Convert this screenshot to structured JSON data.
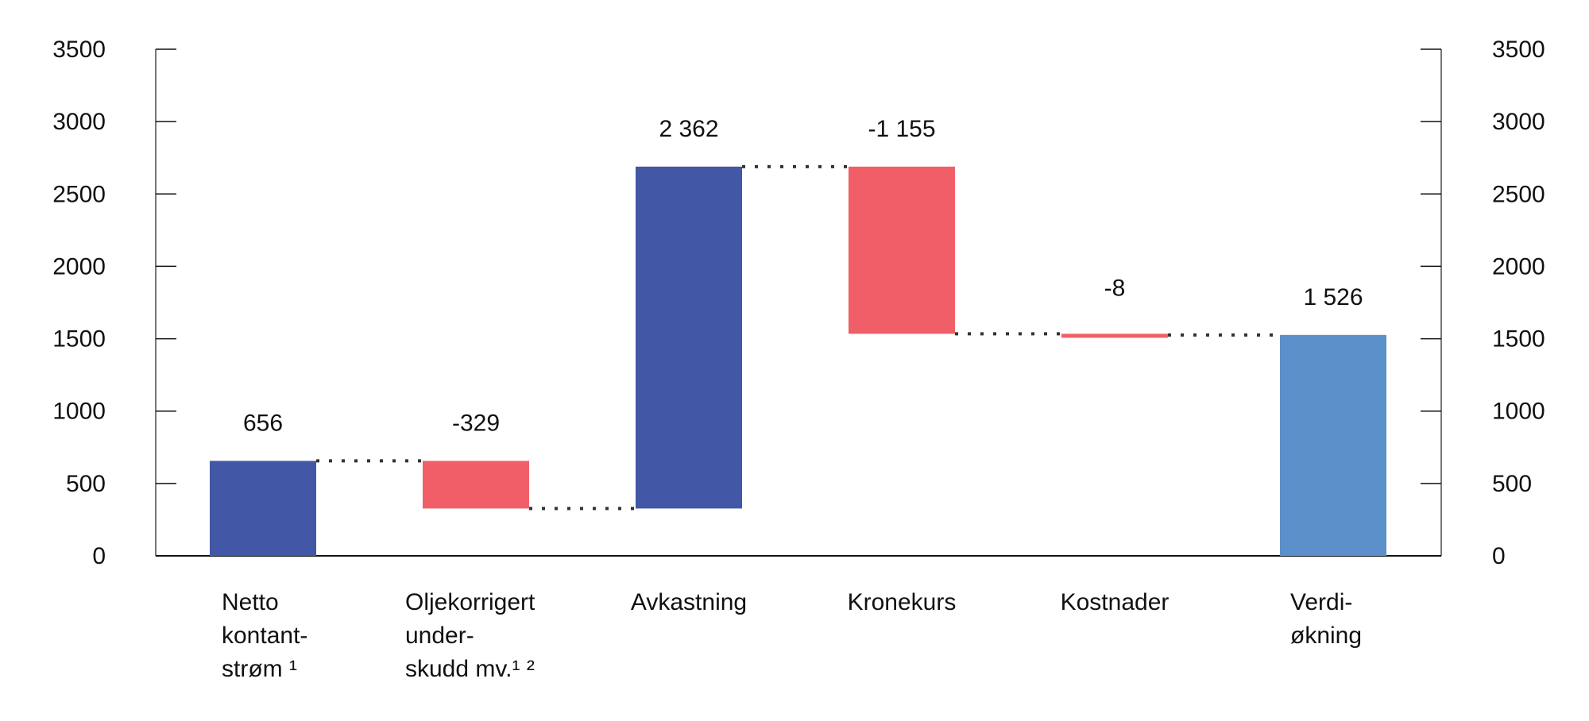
{
  "chart_data": {
    "type": "waterfall",
    "title": "",
    "xlabel": "",
    "ylabel": "",
    "ylim": [
      0,
      3500
    ],
    "yticks": [
      0,
      500,
      1000,
      1500,
      2000,
      2500,
      3000,
      3500
    ],
    "secondary_yticks": [
      0,
      500,
      1000,
      1500,
      2000,
      2500,
      3000,
      3500
    ],
    "grid": false,
    "categories": [
      "Netto kontantstrøm ¹",
      "Oljekorrigert underskudd mv.¹ ²",
      "Avkastning",
      "Kronekurs",
      "Kostnader",
      "Verdiøkning"
    ],
    "values": [
      656,
      -329,
      2362,
      -1155,
      -8,
      1526
    ],
    "value_labels": [
      "656",
      "-329",
      "2 362",
      "-1 155",
      "-8",
      "1 526"
    ],
    "colors": {
      "increase": "#4257a6",
      "decrease": "#f05f67",
      "total": "#5b90cb"
    }
  },
  "categories_display": [
    "Netto\nkontant-\nstrøm ¹",
    "Oljekorrigert\nunder-\nskudd mv.¹ ²",
    "Avkastning",
    "Kronekurs",
    "Kostnader",
    "Verdi-\nøkning"
  ]
}
